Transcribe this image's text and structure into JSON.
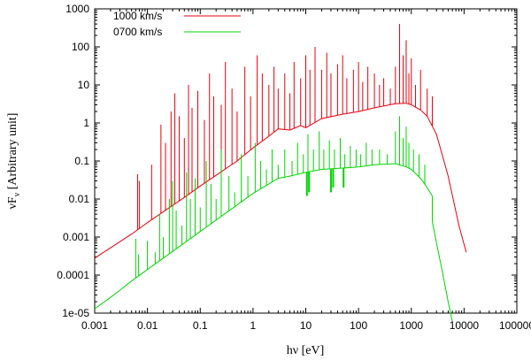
{
  "chart_data": {
    "type": "line",
    "title": "",
    "xlabel": "hν [eV]",
    "ylabel_main": "νF",
    "ylabel_sub": "ν",
    "ylabel_rest": " [Arbitrary unit]",
    "xscale": "log",
    "yscale": "log",
    "xlim": [
      0.001,
      100000
    ],
    "ylim": [
      1e-05,
      1000
    ],
    "xticks": [
      0.001,
      0.01,
      0.1,
      1,
      10,
      100,
      1000,
      10000,
      100000
    ],
    "xtick_labels": [
      "0.001",
      "0.01",
      "0.1",
      "1",
      "10",
      "100",
      "1000",
      "10000",
      "100000"
    ],
    "yticks": [
      1e-05,
      0.0001,
      0.001,
      0.01,
      0.1,
      1,
      10,
      100,
      1000
    ],
    "ytick_labels": [
      "1e-05",
      "0.0001",
      "0.001",
      "0.01",
      "0.1",
      "1",
      "10",
      "100",
      "1000"
    ],
    "legend_position": "top-left",
    "series": [
      {
        "name": "1000 km/s",
        "color": "#e8000b",
        "continuum": {
          "x": [
            0.001,
            0.005,
            0.01,
            0.05,
            0.1,
            0.5,
            1,
            2,
            3,
            5,
            8,
            10,
            20,
            50,
            100,
            200,
            500,
            800,
            1000,
            1500,
            2000,
            3000,
            5000,
            8000,
            11000
          ],
          "y": [
            0.00028,
            0.0012,
            0.0024,
            0.011,
            0.022,
            0.1,
            0.22,
            0.45,
            0.7,
            0.65,
            0.85,
            0.75,
            1.3,
            1.7,
            2.0,
            2.5,
            3.2,
            3.3,
            3.0,
            2.2,
            1.5,
            0.5,
            0.04,
            0.002,
            0.0004
          ]
        },
        "spikes": [
          {
            "x": 0.0065,
            "y": 0.045
          },
          {
            "x": 0.007,
            "y": 0.03
          },
          {
            "x": 0.012,
            "y": 0.08
          },
          {
            "x": 0.018,
            "y": 0.9
          },
          {
            "x": 0.022,
            "y": 0.3
          },
          {
            "x": 0.028,
            "y": 2.0
          },
          {
            "x": 0.033,
            "y": 6.0
          },
          {
            "x": 0.04,
            "y": 1.5
          },
          {
            "x": 0.05,
            "y": 0.4
          },
          {
            "x": 0.06,
            "y": 10
          },
          {
            "x": 0.07,
            "y": 2.5
          },
          {
            "x": 0.09,
            "y": 7.0
          },
          {
            "x": 0.12,
            "y": 1.2
          },
          {
            "x": 0.15,
            "y": 20
          },
          {
            "x": 0.18,
            "y": 5.0
          },
          {
            "x": 0.25,
            "y": 3.0
          },
          {
            "x": 0.3,
            "y": 40
          },
          {
            "x": 0.4,
            "y": 8.0
          },
          {
            "x": 0.5,
            "y": 2.0
          },
          {
            "x": 0.7,
            "y": 30
          },
          {
            "x": 0.9,
            "y": 5.0
          },
          {
            "x": 1.2,
            "y": 60
          },
          {
            "x": 1.5,
            "y": 20
          },
          {
            "x": 2.0,
            "y": 10
          },
          {
            "x": 2.5,
            "y": 30
          },
          {
            "x": 3.0,
            "y": 8.0
          },
          {
            "x": 4.0,
            "y": 20
          },
          {
            "x": 5.0,
            "y": 6.0
          },
          {
            "x": 6.0,
            "y": 40
          },
          {
            "x": 8.0,
            "y": 15
          },
          {
            "x": 10,
            "y": 60
          },
          {
            "x": 12,
            "y": 25
          },
          {
            "x": 15,
            "y": 100
          },
          {
            "x": 20,
            "y": 25
          },
          {
            "x": 25,
            "y": 70
          },
          {
            "x": 30,
            "y": 20
          },
          {
            "x": 40,
            "y": 35
          },
          {
            "x": 50,
            "y": 60
          },
          {
            "x": 60,
            "y": 15
          },
          {
            "x": 80,
            "y": 25
          },
          {
            "x": 100,
            "y": 40
          },
          {
            "x": 120,
            "y": 12
          },
          {
            "x": 150,
            "y": 30
          },
          {
            "x": 200,
            "y": 20
          },
          {
            "x": 250,
            "y": 10
          },
          {
            "x": 300,
            "y": 15
          },
          {
            "x": 400,
            "y": 8.0
          },
          {
            "x": 500,
            "y": 30
          },
          {
            "x": 600,
            "y": 400
          },
          {
            "x": 700,
            "y": 60
          },
          {
            "x": 800,
            "y": 150
          },
          {
            "x": 900,
            "y": 20
          },
          {
            "x": 1000,
            "y": 50
          },
          {
            "x": 1200,
            "y": 10
          },
          {
            "x": 1500,
            "y": 25
          },
          {
            "x": 2000,
            "y": 8.0
          },
          {
            "x": 2500,
            "y": 5.0
          }
        ]
      },
      {
        "name": "0700 km/s",
        "color": "#00d500",
        "continuum": {
          "x": [
            0.005,
            0.01,
            0.05,
            0.1,
            0.5,
            1,
            2,
            3,
            5,
            10,
            20,
            50,
            100,
            200,
            500,
            800,
            1000,
            1500,
            2000,
            2500
          ],
          "y": [
            7e-05,
            0.00014,
            0.0007,
            0.0014,
            0.007,
            0.014,
            0.025,
            0.035,
            0.04,
            0.05,
            0.06,
            0.065,
            0.07,
            0.08,
            0.085,
            0.07,
            0.06,
            0.035,
            0.02,
            0.012
          ]
        },
        "tail": {
          "x": [
            2500,
            3000,
            4000,
            5000,
            6000
          ],
          "y": [
            0.0025,
            0.0007,
            0.0001,
            2e-05,
            6e-06
          ]
        },
        "pre_tail": {
          "x": [
            0.001,
            0.002,
            0.003,
            0.005
          ],
          "y": [
            1.3e-05,
            2.6e-05,
            4e-05,
            7e-05
          ]
        },
        "spikes": [
          {
            "x": 0.006,
            "y": 0.0009
          },
          {
            "x": 0.0068,
            "y": 0.00035
          },
          {
            "x": 0.01,
            "y": 0.0008
          },
          {
            "x": 0.014,
            "y": 0.0004
          },
          {
            "x": 0.017,
            "y": 0.004
          },
          {
            "x": 0.02,
            "y": 0.001
          },
          {
            "x": 0.026,
            "y": 0.01
          },
          {
            "x": 0.03,
            "y": 0.03
          },
          {
            "x": 0.035,
            "y": 0.005
          },
          {
            "x": 0.045,
            "y": 0.002
          },
          {
            "x": 0.055,
            "y": 0.05
          },
          {
            "x": 0.065,
            "y": 0.01
          },
          {
            "x": 0.08,
            "y": 0.035
          },
          {
            "x": 0.1,
            "y": 0.006
          },
          {
            "x": 0.13,
            "y": 0.1
          },
          {
            "x": 0.16,
            "y": 0.025
          },
          {
            "x": 0.2,
            "y": 0.01
          },
          {
            "x": 0.25,
            "y": 0.2
          },
          {
            "x": 0.35,
            "y": 0.04
          },
          {
            "x": 0.45,
            "y": 0.015
          },
          {
            "x": 0.6,
            "y": 0.15
          },
          {
            "x": 0.8,
            "y": 0.04
          },
          {
            "x": 1.1,
            "y": 0.3
          },
          {
            "x": 1.4,
            "y": 0.1
          },
          {
            "x": 1.8,
            "y": 0.06
          },
          {
            "x": 2.3,
            "y": 0.2
          },
          {
            "x": 3.0,
            "y": 0.08
          },
          {
            "x": 4.0,
            "y": 0.2
          },
          {
            "x": 5.5,
            "y": 0.1
          },
          {
            "x": 7.0,
            "y": 0.3
          },
          {
            "x": 9.0,
            "y": 0.15
          },
          {
            "x": 11,
            "y": 0.5
          },
          {
            "x": 14,
            "y": 0.2
          },
          {
            "x": 18,
            "y": 0.6
          },
          {
            "x": 22,
            "y": 0.2
          },
          {
            "x": 28,
            "y": 0.35
          },
          {
            "x": 35,
            "y": 0.2
          },
          {
            "x": 45,
            "y": 0.4
          },
          {
            "x": 55,
            "y": 0.15
          },
          {
            "x": 70,
            "y": 0.25
          },
          {
            "x": 90,
            "y": 0.2
          },
          {
            "x": 110,
            "y": 0.15
          },
          {
            "x": 140,
            "y": 0.3
          },
          {
            "x": 180,
            "y": 0.2
          },
          {
            "x": 250,
            "y": 0.2
          },
          {
            "x": 350,
            "y": 0.15
          },
          {
            "x": 500,
            "y": 0.6
          },
          {
            "x": 600,
            "y": 1.5
          },
          {
            "x": 700,
            "y": 0.4
          },
          {
            "x": 800,
            "y": 0.8
          },
          {
            "x": 900,
            "y": 0.3
          },
          {
            "x": 1100,
            "y": 0.2
          },
          {
            "x": 1400,
            "y": 0.15
          },
          {
            "x": 1800,
            "y": 0.08
          }
        ],
        "dips": [
          {
            "x": 10.5,
            "y": 0.012
          },
          {
            "x": 11.5,
            "y": 0.015
          },
          {
            "x": 30,
            "y": 0.015
          },
          {
            "x": 33,
            "y": 0.02
          },
          {
            "x": 52,
            "y": 0.02
          }
        ]
      }
    ]
  }
}
